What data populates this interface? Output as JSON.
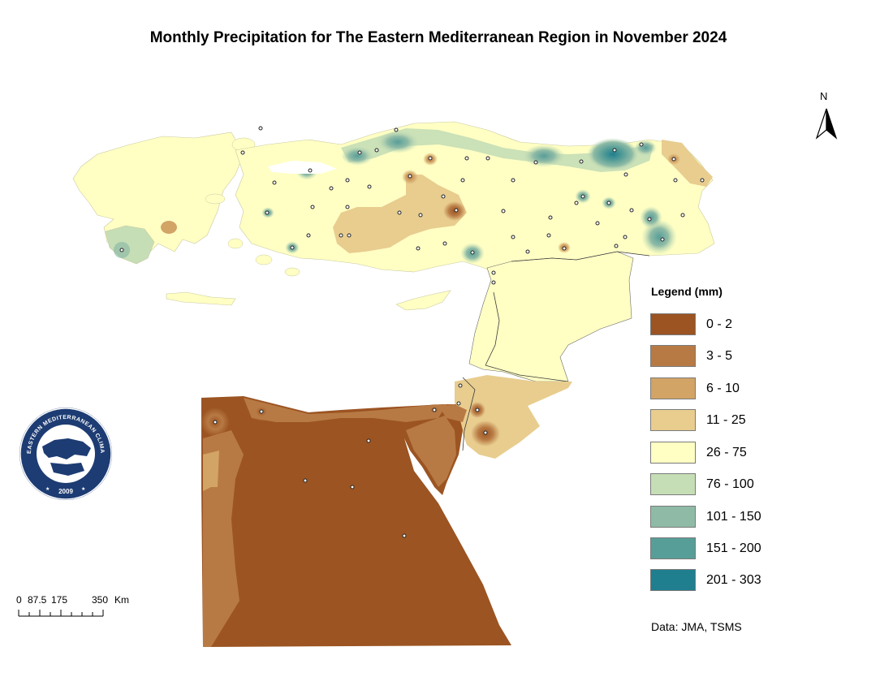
{
  "title": "Monthly Precipitation for The Eastern Mediterranean Region in November 2024",
  "north_arrow": {
    "label": "N",
    "icon": "north-arrow-icon"
  },
  "legend": {
    "title": "Legend (mm)",
    "items": [
      {
        "label": "0 - 2",
        "color": "#9b5422"
      },
      {
        "label": "3 - 5",
        "color": "#b87a44"
      },
      {
        "label": "6 - 10",
        "color": "#d2a466"
      },
      {
        "label": "11 - 25",
        "color": "#e8cd8f"
      },
      {
        "label": "26 - 75",
        "color": "#ffffc4"
      },
      {
        "label": "76 - 100",
        "color": "#c5deb6"
      },
      {
        "label": "101 - 150",
        "color": "#8fbba6"
      },
      {
        "label": "151 - 200",
        "color": "#589e98"
      },
      {
        "label": "201 - 303",
        "color": "#1f7f8f"
      }
    ]
  },
  "source": "Data: JMA, TSMS",
  "scale_bar": {
    "labels": [
      "0",
      "87.5",
      "175",
      "350",
      "Km"
    ]
  },
  "logo": {
    "text": "EASTERN MEDITERRANEAN CLIMATE CENTRE",
    "year": "2009"
  }
}
